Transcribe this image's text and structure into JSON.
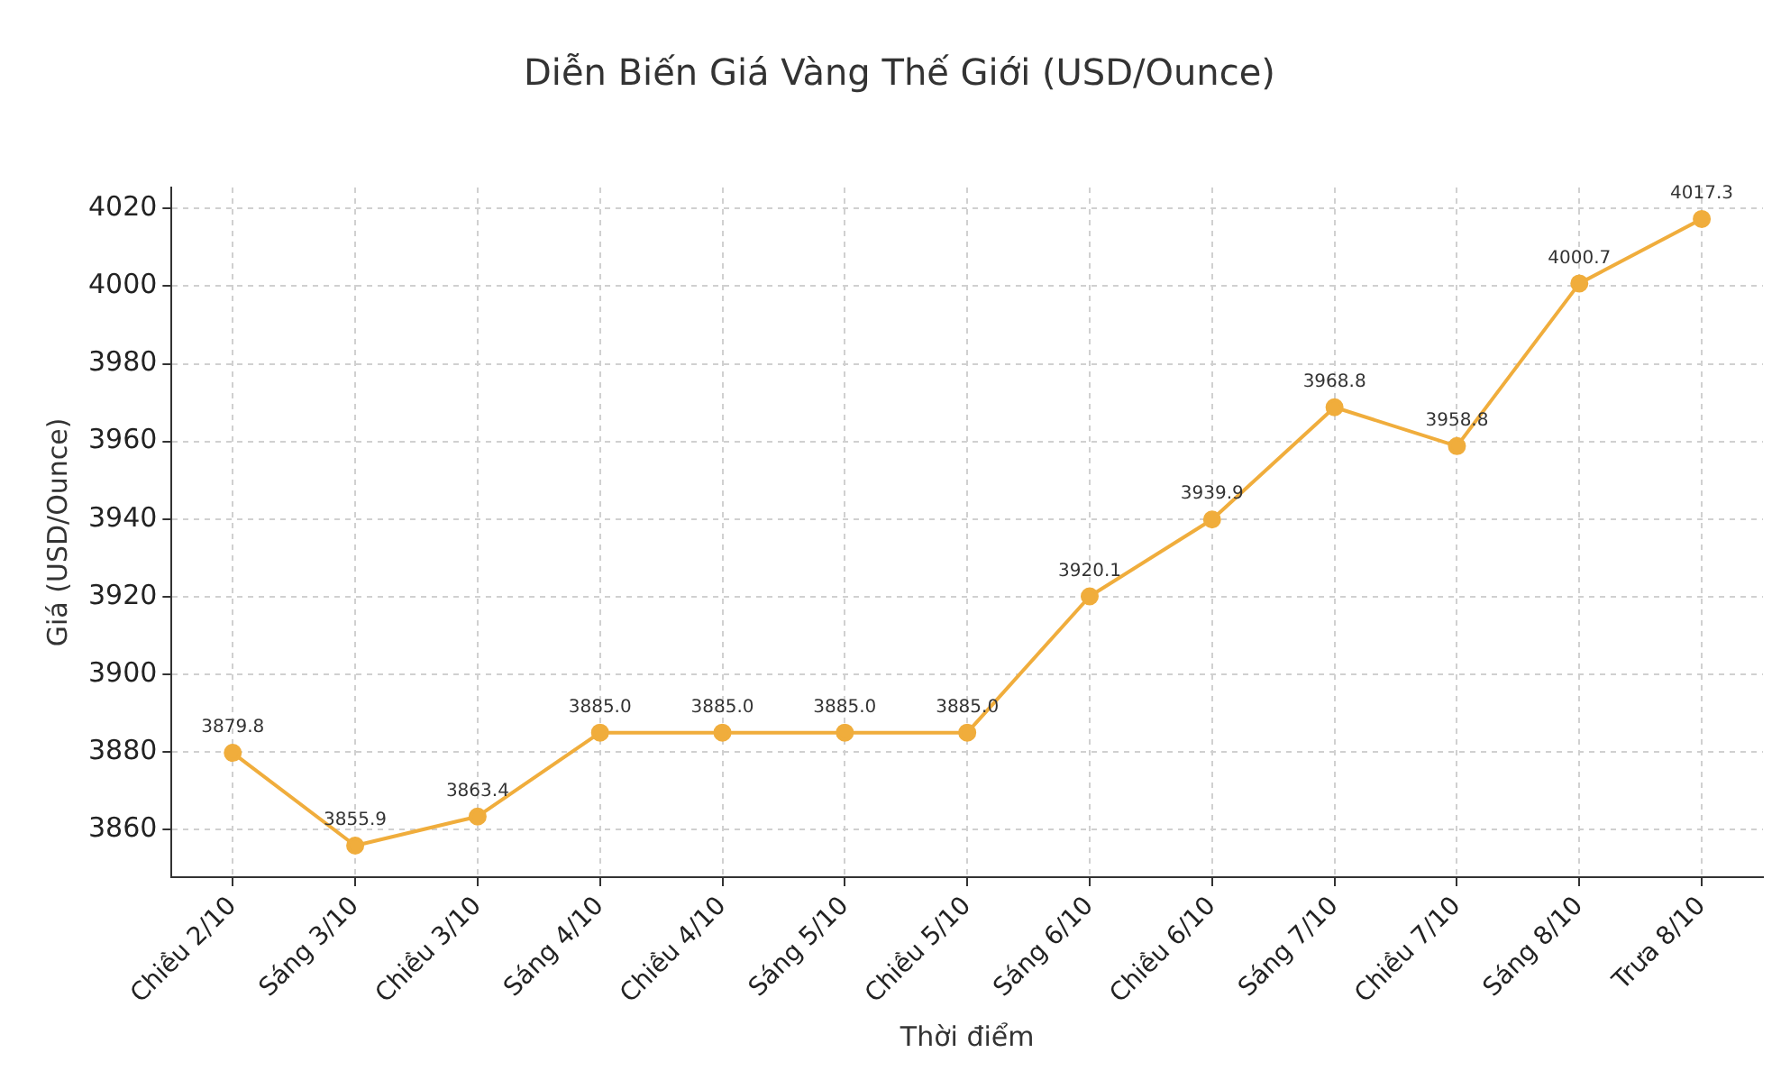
{
  "chart_data": {
    "type": "line",
    "title": "Diễn Biến Giá Vàng Thế Giới (USD/Ounce)",
    "xlabel": "Thời điểm",
    "ylabel": "Giá (USD/Ounce)",
    "categories": [
      "Chiều 2/10",
      "Sáng 3/10",
      "Chiều 3/10",
      "Sáng 4/10",
      "Chiều 4/10",
      "Sáng 5/10",
      "Chiều 5/10",
      "Sáng 6/10",
      "Chiều 6/10",
      "Sáng 7/10",
      "Chiều 7/10",
      "Sáng 8/10",
      "Trưa 8/10"
    ],
    "series": [
      {
        "color": "#f0ad3c",
        "values": [
          3879.8,
          3855.9,
          3863.4,
          3885.0,
          3885.0,
          3885.0,
          3885.0,
          3920.1,
          3939.9,
          3968.8,
          3958.8,
          4000.7,
          4017.3
        ],
        "value_labels": [
          "3879.8",
          "3855.9",
          "3863.4",
          "3885.0",
          "3885.0",
          "3885.0",
          "3885.0",
          "3920.1",
          "3939.9",
          "3968.8",
          "3958.8",
          "4000.7",
          "4017.3"
        ]
      }
    ],
    "ylim": [
      3847.8,
      4025.4
    ],
    "yticks": [
      3860,
      3880,
      3900,
      3920,
      3940,
      3960,
      3980,
      4000,
      4020
    ],
    "grid": true,
    "legend": false,
    "marker": "circle",
    "line_style": "solid"
  }
}
